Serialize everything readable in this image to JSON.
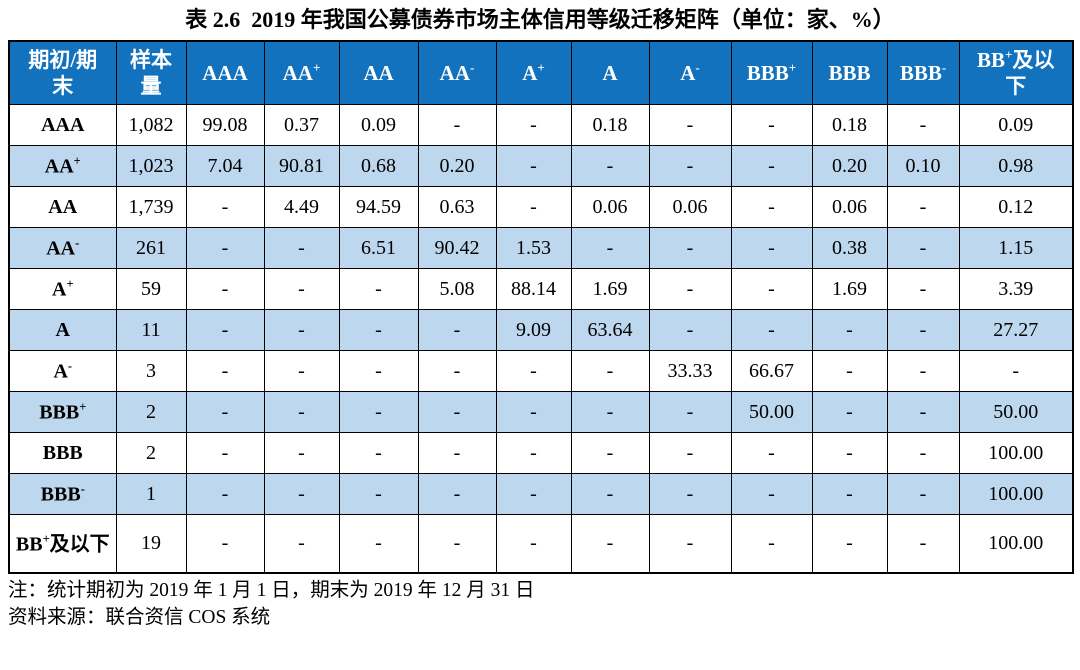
{
  "title": "表 2.6  2019 年我国公募债券市场主体信用等级迁移矩阵（单位：家、%）",
  "colors": {
    "header_bg": "#1372BD",
    "header_text": "#FFFFFF",
    "stripe_bg": "#BDD7EE",
    "row_bg": "#FFFFFF",
    "border": "#000000"
  },
  "table": {
    "corner_header": "期初/期末",
    "sample_header": "样本量",
    "rating_columns": [
      "AAA",
      "AA+",
      "AA",
      "AA-",
      "A+",
      "A",
      "A-",
      "BBB+",
      "BBB",
      "BBB-",
      "BB+及以下"
    ],
    "rows": [
      {
        "rating": "AAA",
        "sample": "1,082",
        "values": [
          "99.08",
          "0.37",
          "0.09",
          "-",
          "-",
          "0.18",
          "-",
          "-",
          "0.18",
          "-",
          "0.09"
        ]
      },
      {
        "rating": "AA+",
        "sample": "1,023",
        "values": [
          "7.04",
          "90.81",
          "0.68",
          "0.20",
          "-",
          "-",
          "-",
          "-",
          "0.20",
          "0.10",
          "0.98"
        ]
      },
      {
        "rating": "AA",
        "sample": "1,739",
        "values": [
          "-",
          "4.49",
          "94.59",
          "0.63",
          "-",
          "0.06",
          "0.06",
          "-",
          "0.06",
          "-",
          "0.12"
        ]
      },
      {
        "rating": "AA-",
        "sample": "261",
        "values": [
          "-",
          "-",
          "6.51",
          "90.42",
          "1.53",
          "-",
          "-",
          "-",
          "0.38",
          "-",
          "1.15"
        ]
      },
      {
        "rating": "A+",
        "sample": "59",
        "values": [
          "-",
          "-",
          "-",
          "5.08",
          "88.14",
          "1.69",
          "-",
          "-",
          "1.69",
          "-",
          "3.39"
        ]
      },
      {
        "rating": "A",
        "sample": "11",
        "values": [
          "-",
          "-",
          "-",
          "-",
          "9.09",
          "63.64",
          "-",
          "-",
          "-",
          "-",
          "27.27"
        ]
      },
      {
        "rating": "A-",
        "sample": "3",
        "values": [
          "-",
          "-",
          "-",
          "-",
          "-",
          "-",
          "33.33",
          "66.67",
          "-",
          "-",
          "-"
        ]
      },
      {
        "rating": "BBB+",
        "sample": "2",
        "values": [
          "-",
          "-",
          "-",
          "-",
          "-",
          "-",
          "-",
          "50.00",
          "-",
          "-",
          "50.00"
        ]
      },
      {
        "rating": "BBB",
        "sample": "2",
        "values": [
          "-",
          "-",
          "-",
          "-",
          "-",
          "-",
          "-",
          "-",
          "-",
          "-",
          "100.00"
        ]
      },
      {
        "rating": "BBB-",
        "sample": "1",
        "values": [
          "-",
          "-",
          "-",
          "-",
          "-",
          "-",
          "-",
          "-",
          "-",
          "-",
          "100.00"
        ]
      },
      {
        "rating": "BB+及以下",
        "sample": "19",
        "values": [
          "-",
          "-",
          "-",
          "-",
          "-",
          "-",
          "-",
          "-",
          "-",
          "-",
          "100.00"
        ]
      }
    ]
  },
  "notes": [
    "注：统计期初为 2019 年 1 月 1 日，期末为 2019 年 12 月 31 日",
    "资料来源：联合资信 COS 系统"
  ]
}
